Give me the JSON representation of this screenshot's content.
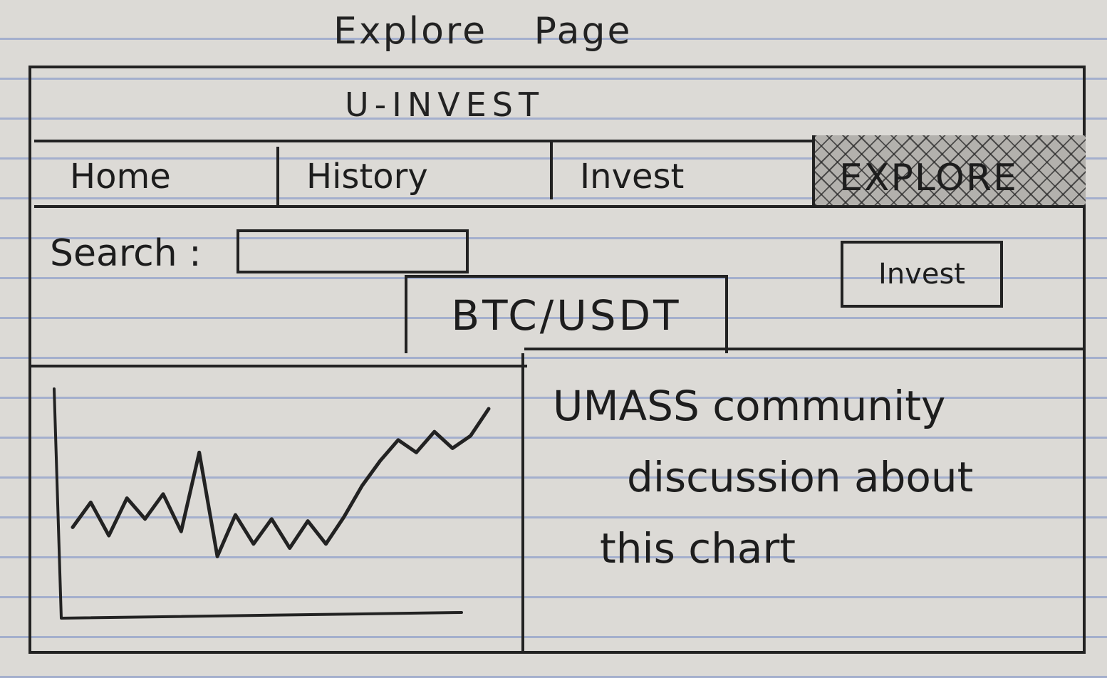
{
  "caption": "Explore Page",
  "app": {
    "title": "U-INVEST"
  },
  "nav": {
    "tabs": [
      "Home",
      "History",
      "Invest",
      "EXPLORE"
    ],
    "active": "EXPLORE"
  },
  "search": {
    "label": "Search :",
    "value": ""
  },
  "invest_button": {
    "label": "Invest"
  },
  "pair_tab": {
    "label": "BTC/USDT"
  },
  "discussion": {
    "line1": "UMASS community",
    "line2": "discussion about",
    "line3": "this chart"
  },
  "colors": {
    "ink": "#222222",
    "paper": "#dcdad6",
    "ruled_line": "#768cc6",
    "active_tab_fill": "#b3b1ad"
  },
  "chart_data": {
    "type": "line",
    "title": "",
    "xlabel": "",
    "ylabel": "",
    "series": [
      {
        "values": [
          3.0,
          4.2,
          2.6,
          4.4,
          3.4,
          4.6,
          2.8,
          6.6,
          1.6,
          3.6,
          2.2,
          3.4,
          2.0,
          3.3,
          2.2,
          3.5,
          5.0,
          6.2,
          7.2,
          6.6,
          7.6,
          6.8,
          7.4,
          8.7
        ]
      }
    ],
    "ylim": [
      0,
      10
    ],
    "grid": false
  }
}
